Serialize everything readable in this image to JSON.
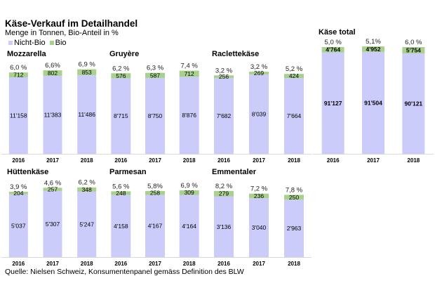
{
  "title": "Käse-Verkauf im Detailhandel",
  "subtitle": "Menge in Tonnen,  Bio-Anteil in %",
  "legend": [
    {
      "label": "Nicht-Bio",
      "color": "#ccccfb"
    },
    {
      "label": "Bio",
      "color": "#a9d18e"
    }
  ],
  "source": "Quelle: Nielsen Schweiz, Konsumentenpanel gemäss Definition des BLW",
  "colors": {
    "nicht_bio": "#ccccfb",
    "bio": "#a9d18e",
    "axis": "#d9d9d9"
  },
  "chart_data": [
    {
      "type": "bar",
      "stacked": true,
      "title": "Mozzarella",
      "categories": [
        "2016",
        "2017",
        "2018"
      ],
      "series": [
        {
          "name": "Nicht-Bio",
          "values": [
            11158,
            11383,
            11486
          ],
          "labels": [
            "11'158",
            "11'383",
            "11'486"
          ]
        },
        {
          "name": "Bio",
          "values": [
            712,
            802,
            853
          ],
          "labels": [
            "712",
            "802",
            "853"
          ]
        }
      ],
      "bio_share_labels": [
        "6,0 %",
        "6,6%",
        "6,9 %"
      ],
      "ylim": [
        0,
        12400
      ]
    },
    {
      "type": "bar",
      "stacked": true,
      "title": "Gruyère",
      "categories": [
        "2016",
        "2017",
        "2018"
      ],
      "series": [
        {
          "name": "Nicht-Bio",
          "values": [
            8715,
            8750,
            8876
          ],
          "labels": [
            "8'715",
            "8'750",
            "8'876"
          ]
        },
        {
          "name": "Bio",
          "values": [
            576,
            587,
            712
          ],
          "labels": [
            "576",
            "587",
            "712"
          ]
        }
      ],
      "bio_share_labels": [
        "6,2 %",
        "6,3 %",
        "7,4 %"
      ],
      "ylim": [
        0,
        9800
      ]
    },
    {
      "type": "bar",
      "stacked": true,
      "title": "Raclettekäse",
      "categories": [
        "2016",
        "2017",
        "2018"
      ],
      "series": [
        {
          "name": "Nicht-Bio",
          "values": [
            7682,
            8039,
            7664
          ],
          "labels": [
            "7'682",
            "8'039",
            "7'664"
          ]
        },
        {
          "name": "Bio",
          "values": [
            256,
            269,
            424
          ],
          "labels": [
            "256",
            "269",
            "424"
          ]
        }
      ],
      "bio_share_labels": [
        "3,2 %",
        "3,2 %",
        "5,2 %"
      ],
      "ylim": [
        0,
        8600
      ]
    },
    {
      "type": "bar",
      "stacked": true,
      "title": "Käse total",
      "categories": [
        "2016",
        "2017",
        "2018"
      ],
      "series": [
        {
          "name": "Nicht-Bio",
          "values": [
            91127,
            91504,
            90121
          ],
          "labels": [
            "91'127",
            "91'504",
            "90'121"
          ]
        },
        {
          "name": "Bio",
          "values": [
            4764,
            4952,
            5754
          ],
          "labels": [
            "4'764",
            "4'952",
            "5'754"
          ]
        }
      ],
      "bio_share_labels": [
        "5,0 %",
        "5,1%",
        "6,0 %"
      ],
      "ylim": [
        0,
        96500
      ]
    },
    {
      "type": "bar",
      "stacked": true,
      "title": "Hüttenkäse",
      "categories": [
        "2016",
        "2017",
        "2018"
      ],
      "series": [
        {
          "name": "Nicht-Bio",
          "values": [
            5037,
            5307,
            5247
          ],
          "labels": [
            "5'037",
            "5'307",
            "5'247"
          ]
        },
        {
          "name": "Bio",
          "values": [
            204,
            257,
            348
          ],
          "labels": [
            "204",
            "257",
            "348"
          ]
        }
      ],
      "bio_share_labels": [
        "3,9 %",
        "4,6 %",
        "6,2 %"
      ],
      "ylim": [
        0,
        5750
      ]
    },
    {
      "type": "bar",
      "stacked": true,
      "title": "Parmesan",
      "categories": [
        "2016",
        "2017",
        "2018"
      ],
      "series": [
        {
          "name": "Nicht-Bio",
          "values": [
            4158,
            4167,
            4164
          ],
          "labels": [
            "4'158",
            "4'167",
            "4'164"
          ]
        },
        {
          "name": "Bio",
          "values": [
            248,
            258,
            309
          ],
          "labels": [
            "248",
            "258",
            "309"
          ]
        }
      ],
      "bio_share_labels": [
        "5,6 %",
        "5,8%",
        "6,9 %"
      ],
      "ylim": [
        0,
        4800
      ]
    },
    {
      "type": "bar",
      "stacked": true,
      "title": "Emmentaler",
      "categories": [
        "2016",
        "2017",
        "2018"
      ],
      "series": [
        {
          "name": "Nicht-Bio",
          "values": [
            3136,
            3040,
            2963
          ],
          "labels": [
            "3'136",
            "3'040",
            "2'963"
          ]
        },
        {
          "name": "Bio",
          "values": [
            279,
            236,
            250
          ],
          "labels": [
            "279",
            "236",
            "250"
          ]
        }
      ],
      "bio_share_labels": [
        "8,2 %",
        "7,2 %",
        "7,8 %"
      ],
      "ylim": [
        0,
        3700
      ]
    }
  ]
}
